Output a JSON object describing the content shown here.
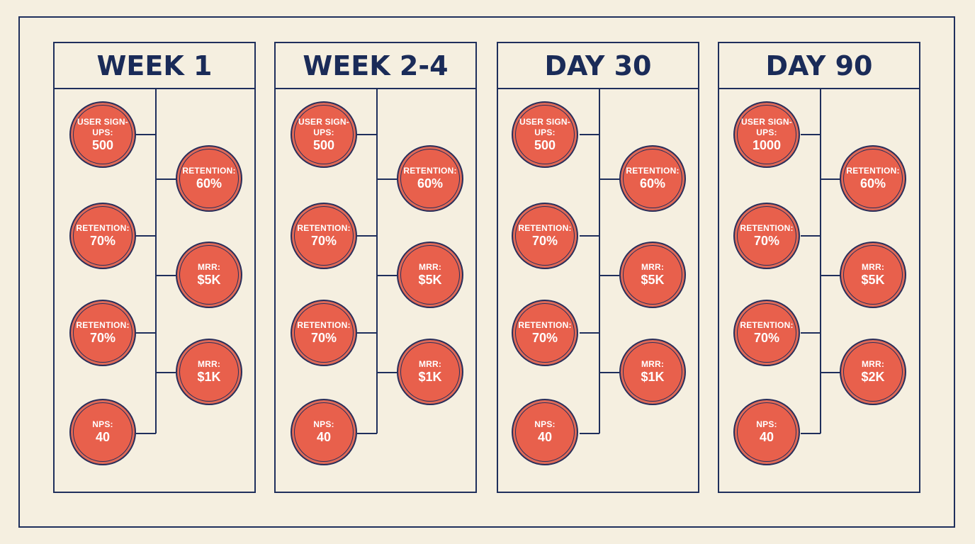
{
  "panels": [
    {
      "title": "WEEK 1",
      "left_metrics": [
        {
          "label": "USER SIGN-UPS:",
          "value": "500"
        },
        {
          "label": "RETENTION:",
          "value": "70%"
        },
        {
          "label": "RETENTION:",
          "value": "70%"
        },
        {
          "label": "NPS:",
          "value": "40"
        }
      ],
      "right_metrics": [
        {
          "label": "RETENTION:",
          "value": "60%"
        },
        {
          "label": "MRR:",
          "value": "$5K"
        },
        {
          "label": "MRR:",
          "value": "$1K"
        }
      ]
    },
    {
      "title": "WEEK 2-4",
      "left_metrics": [
        {
          "label": "USER SIGN-UPS:",
          "value": "500"
        },
        {
          "label": "RETENTION:",
          "value": "70%"
        },
        {
          "label": "RETENTION:",
          "value": "70%"
        },
        {
          "label": "NPS:",
          "value": "40"
        }
      ],
      "right_metrics": [
        {
          "label": "RETENTION:",
          "value": "60%"
        },
        {
          "label": "MRR:",
          "value": "$5K"
        },
        {
          "label": "MRR:",
          "value": "$1K"
        }
      ]
    },
    {
      "title": "DAY 30",
      "left_metrics": [
        {
          "label": "USER SIGN-UPS:",
          "value": "500"
        },
        {
          "label": "RETENTION:",
          "value": "70%"
        },
        {
          "label": "RETENTION:",
          "value": "70%"
        },
        {
          "label": "NPS:",
          "value": "40"
        }
      ],
      "right_metrics": [
        {
          "label": "RETENTION:",
          "value": "60%"
        },
        {
          "label": "MRR:",
          "value": "$5K"
        },
        {
          "label": "MRR:",
          "value": "$1K"
        }
      ]
    },
    {
      "title": "DAY 90",
      "left_metrics": [
        {
          "label": "USER SIGN-UPS:",
          "value": "1000"
        },
        {
          "label": "RETENTION:",
          "value": "70%"
        },
        {
          "label": "RETENTION:",
          "value": "70%"
        },
        {
          "label": "NPS:",
          "value": "40"
        }
      ],
      "right_metrics": [
        {
          "label": "RETENTION:",
          "value": "60%"
        },
        {
          "label": "MRR:",
          "value": "$5K"
        },
        {
          "label": "MRR:",
          "value": "$2K"
        }
      ]
    }
  ],
  "colors": {
    "background": "#f5efe0",
    "line": "#1f2f5c",
    "title": "#1a2b58",
    "circle_fill": "#e8604c",
    "circle_text": "#ffffff"
  }
}
